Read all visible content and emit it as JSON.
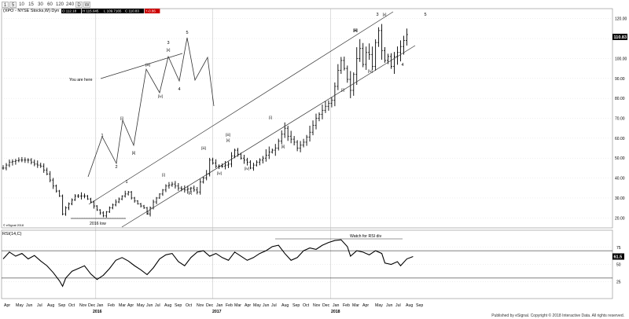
{
  "toolbar": {
    "buttons": [
      "1",
      "5",
      "10",
      "15",
      "30",
      "60",
      "120",
      "240",
      "D",
      "W"
    ]
  },
  "header": {
    "title": "(XPO - NYSE Stocks,W) Dyn",
    "values": [
      "O 112.18",
      "H 115.045",
      "L 109.7165",
      "C 110.83",
      "+-0.86"
    ]
  },
  "footer": {
    "publisher": "Published by eSignal. Copyright © 2018 Interactive Data. All rights reserved.",
    "copyright": "© eSignal 2018"
  },
  "colors": {
    "price_bars": "#000000",
    "grid": "#d4d4d4",
    "last_price_tag": "#000000",
    "change_tag": "#cc0000"
  },
  "chart_data": [
    {
      "type": "ohlc",
      "title": "(XPO - NYSE Stocks,W) Dyn",
      "last_price_label": "110.83",
      "ylim": [
        15,
        125
      ],
      "yticks": [
        20,
        30,
        40,
        50,
        60,
        70,
        80,
        90,
        100,
        110,
        120
      ],
      "ytick_labels": [
        "20.00",
        "30.00",
        "40.00",
        "50.00",
        "60.00",
        "70.00",
        "80.00",
        "90.00",
        "100.00",
        "110.00",
        "120.00"
      ],
      "x_labels": [
        "Apr",
        "May",
        "Jun",
        "Jul",
        "Aug",
        "Sep",
        "Oct",
        "Nov",
        "Dec",
        "Jan",
        "Feb",
        "Mar",
        "Apr",
        "May",
        "Jun",
        "Jul",
        "Aug",
        "Sep",
        "Oct",
        "Nov",
        "Dec",
        "Jan",
        "Feb",
        "Mar",
        "Apr",
        "May",
        "Jun",
        "Jul",
        "Aug",
        "Sep",
        "Oct",
        "Nov",
        "Dec",
        "Jan",
        "Feb",
        "Mar",
        "Apr",
        "May",
        "Jun",
        "Jul",
        "Aug",
        "Sep"
      ],
      "year_labels": [
        "2016",
        "2017",
        "2018"
      ],
      "price_path": [
        [
          0,
          45
        ],
        [
          2,
          48
        ],
        [
          5,
          49
        ],
        [
          8,
          49
        ],
        [
          10,
          47
        ],
        [
          12,
          46
        ],
        [
          14,
          42
        ],
        [
          16,
          36
        ],
        [
          18,
          31
        ],
        [
          19,
          22
        ],
        [
          20,
          25
        ],
        [
          23,
          31
        ],
        [
          26,
          31
        ],
        [
          28,
          28
        ],
        [
          30,
          24
        ],
        [
          32,
          21
        ],
        [
          34,
          25
        ],
        [
          36,
          28
        ],
        [
          38,
          31
        ],
        [
          40,
          33
        ],
        [
          41,
          30
        ],
        [
          43,
          27
        ],
        [
          45,
          25
        ],
        [
          46,
          22
        ],
        [
          48,
          28
        ],
        [
          50,
          32
        ],
        [
          52,
          36
        ],
        [
          54,
          37
        ],
        [
          56,
          35
        ],
        [
          58,
          34
        ],
        [
          60,
          35
        ],
        [
          62,
          33
        ],
        [
          63,
          38
        ],
        [
          65,
          42
        ],
        [
          66,
          49
        ],
        [
          68,
          46
        ],
        [
          70,
          46
        ],
        [
          72,
          47
        ],
        [
          73,
          51
        ],
        [
          74,
          54
        ],
        [
          76,
          50
        ],
        [
          78,
          48
        ],
        [
          79,
          45
        ],
        [
          81,
          48
        ],
        [
          83,
          50
        ],
        [
          85,
          53
        ],
        [
          87,
          55
        ],
        [
          89,
          62
        ],
        [
          90,
          65
        ],
        [
          91,
          61
        ],
        [
          93,
          58
        ],
        [
          94,
          55
        ],
        [
          96,
          58
        ],
        [
          98,
          63
        ],
        [
          100,
          70
        ],
        [
          103,
          76
        ],
        [
          105,
          79
        ],
        [
          106,
          86
        ],
        [
          107,
          94
        ],
        [
          108,
          99
        ],
        [
          109,
          95
        ],
        [
          111,
          84
        ],
        [
          112,
          92
        ],
        [
          113,
          100
        ],
        [
          114,
          105
        ],
        [
          115,
          97
        ],
        [
          116,
          103
        ],
        [
          117,
          102
        ],
        [
          118,
          96
        ],
        [
          119,
          108
        ],
        [
          120,
          114
        ],
        [
          121,
          104
        ],
        [
          122,
          99
        ],
        [
          123,
          101
        ],
        [
          124,
          96
        ],
        [
          125,
          101
        ],
        [
          126,
          103
        ],
        [
          127,
          106
        ],
        [
          128,
          109
        ],
        [
          129,
          112
        ]
      ],
      "annotations": {
        "elliott": [
          "1",
          "2",
          "1",
          "2",
          "[i]",
          "[ii]",
          "[iii]",
          "[iv]",
          "[v]",
          "3",
          "4",
          "5",
          "[i]",
          "[ii]",
          "[iii]",
          "[iv]",
          "[v]",
          "[i]",
          "[ii]",
          "[iii]",
          "[iv]",
          "[i]",
          "[ii]",
          "[iii]",
          "[iv]",
          "[v]",
          "3",
          "4",
          "5"
        ],
        "you_are_here": "You are here",
        "low_2016": "2016 low"
      }
    },
    {
      "type": "line",
      "title": "RSI(14,C)",
      "last_value_label": "61.5",
      "ylim": [
        0,
        100
      ],
      "yticks": [
        25,
        50,
        75
      ],
      "guide_levels": [
        30,
        70
      ],
      "annotation": "Watch for RSI div",
      "series": [
        {
          "values": [
            [
              0,
              58
            ],
            [
              2,
              68
            ],
            [
              4,
              62
            ],
            [
              6,
              66
            ],
            [
              8,
              58
            ],
            [
              10,
              63
            ],
            [
              12,
              55
            ],
            [
              14,
              48
            ],
            [
              16,
              38
            ],
            [
              18,
              26
            ],
            [
              19,
              18
            ],
            [
              20,
              30
            ],
            [
              22,
              40
            ],
            [
              24,
              44
            ],
            [
              26,
              48
            ],
            [
              28,
              36
            ],
            [
              30,
              28
            ],
            [
              32,
              34
            ],
            [
              34,
              44
            ],
            [
              36,
              56
            ],
            [
              38,
              60
            ],
            [
              40,
              55
            ],
            [
              42,
              48
            ],
            [
              44,
              42
            ],
            [
              46,
              35
            ],
            [
              48,
              45
            ],
            [
              50,
              58
            ],
            [
              52,
              64
            ],
            [
              54,
              66
            ],
            [
              56,
              54
            ],
            [
              58,
              48
            ],
            [
              60,
              60
            ],
            [
              62,
              68
            ],
            [
              64,
              70
            ],
            [
              66,
              62
            ],
            [
              68,
              66
            ],
            [
              70,
              60
            ],
            [
              72,
              56
            ],
            [
              74,
              68
            ],
            [
              76,
              62
            ],
            [
              78,
              56
            ],
            [
              80,
              60
            ],
            [
              82,
              66
            ],
            [
              84,
              70
            ],
            [
              86,
              76
            ],
            [
              88,
              78
            ],
            [
              90,
              66
            ],
            [
              92,
              56
            ],
            [
              94,
              60
            ],
            [
              96,
              70
            ],
            [
              98,
              74
            ],
            [
              100,
              72
            ],
            [
              102,
              78
            ],
            [
              104,
              82
            ],
            [
              106,
              85
            ],
            [
              108,
              86
            ],
            [
              110,
              76
            ],
            [
              111,
              62
            ],
            [
              113,
              70
            ],
            [
              115,
              68
            ],
            [
              117,
              64
            ],
            [
              119,
              70
            ],
            [
              121,
              66
            ],
            [
              122,
              52
            ],
            [
              124,
              50
            ],
            [
              126,
              54
            ],
            [
              127,
              48
            ],
            [
              129,
              58
            ],
            [
              131,
              61.5
            ]
          ]
        }
      ]
    }
  ]
}
